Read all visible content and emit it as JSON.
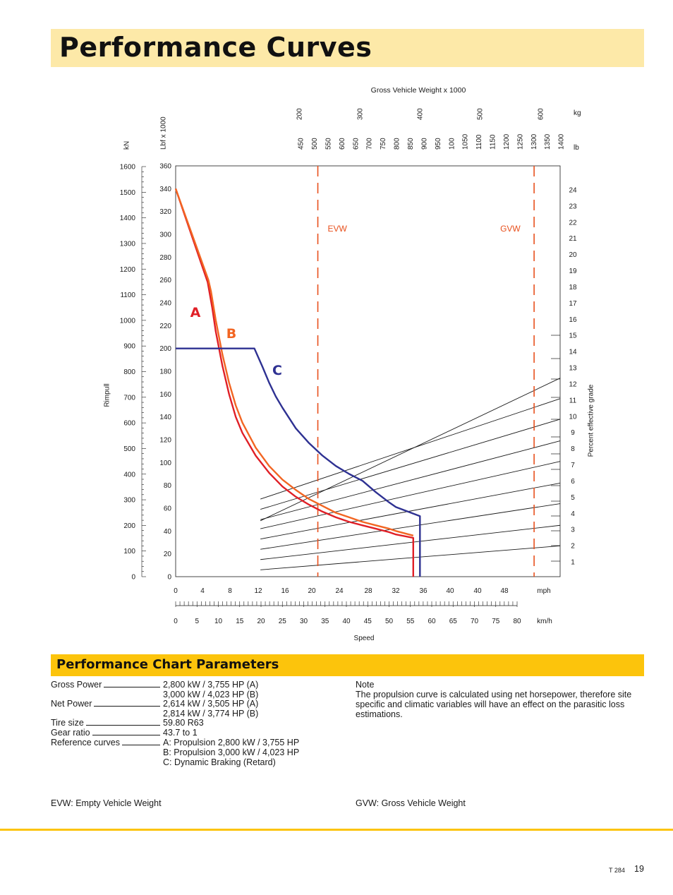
{
  "page_title": "Performance Curves",
  "chart_data": {
    "type": "line",
    "top_axis_title": "Gross Vehicle Weight x 1000",
    "kg_unit": "kg",
    "lb_unit": "lb",
    "kg_ticks": [
      "200",
      "300",
      "400",
      "500",
      "600"
    ],
    "lb_ticks": [
      "450",
      "500",
      "550",
      "600",
      "650",
      "700",
      "750",
      "800",
      "850",
      "900",
      "950",
      "100",
      "1050",
      "1100",
      "1150",
      "1200",
      "1250",
      "1300",
      "1350",
      "1400"
    ],
    "left_axis_kn_unit": "kN",
    "left_axis_lbf_unit": "Lbf x 1000",
    "ylabel": "Rimpull",
    "kn_ticks": [
      "1600",
      "1500",
      "1400",
      "1300",
      "1200",
      "1100",
      "1000",
      "900",
      "800",
      "700",
      "600",
      "500",
      "400",
      "300",
      "200",
      "100",
      "0"
    ],
    "lbf_ticks": [
      "360",
      "340",
      "320",
      "300",
      "280",
      "260",
      "240",
      "220",
      "200",
      "180",
      "160",
      "140",
      "120",
      "100",
      "80",
      "60",
      "40",
      "20",
      "0"
    ],
    "ylim_lbf": [
      0,
      360
    ],
    "right_axis_label": "Percent effective grade",
    "grade_ticks": [
      "24",
      "23",
      "22",
      "21",
      "20",
      "19",
      "18",
      "17",
      "16",
      "15",
      "14",
      "13",
      "12",
      "11",
      "10",
      "9",
      "8",
      "7",
      "6",
      "5",
      "4",
      "3",
      "2",
      "1"
    ],
    "mph_ticks": [
      "0",
      "4",
      "8",
      "12",
      "16",
      "20",
      "24",
      "28",
      "32",
      "36",
      "40",
      "40",
      "48"
    ],
    "mph_unit": "mph",
    "kmh_ticks": [
      "0",
      "5",
      "10",
      "15",
      "20",
      "25",
      "30",
      "35",
      "40",
      "45",
      "50",
      "55",
      "60",
      "65",
      "70",
      "75",
      "80"
    ],
    "kmh_unit": "km/h",
    "xlabel": "Speed",
    "xlim_mph": [
      0,
      57.6
    ],
    "markers": [
      {
        "label": "EVW",
        "x_mph": 21.3,
        "color": "#e8501d"
      },
      {
        "label": "GVW",
        "x_mph": 53.7,
        "color": "#e8501d"
      }
    ],
    "series": [
      {
        "name": "A",
        "color": "#e01f26",
        "points": [
          [
            0,
            340
          ],
          [
            4.8,
            258
          ],
          [
            5.5,
            235
          ],
          [
            6,
            215
          ],
          [
            7,
            185
          ],
          [
            8,
            160
          ],
          [
            9,
            140
          ],
          [
            10,
            126
          ],
          [
            12,
            106
          ],
          [
            14,
            91
          ],
          [
            16,
            79
          ],
          [
            18,
            70
          ],
          [
            20,
            63
          ],
          [
            22,
            57
          ],
          [
            24,
            52
          ],
          [
            26,
            48
          ],
          [
            28,
            45
          ],
          [
            30,
            42
          ],
          [
            32,
            39
          ],
          [
            33,
            37
          ],
          [
            35.6,
            34
          ],
          [
            35.6,
            0
          ]
        ]
      },
      {
        "name": "B",
        "color": "#f26522",
        "points": [
          [
            0,
            340
          ],
          [
            4.9,
            260
          ],
          [
            5.3,
            250
          ],
          [
            6,
            225
          ],
          [
            7,
            195
          ],
          [
            8,
            170
          ],
          [
            9,
            150
          ],
          [
            10,
            135
          ],
          [
            12,
            113
          ],
          [
            14,
            97
          ],
          [
            16,
            85
          ],
          [
            18,
            76
          ],
          [
            20,
            68
          ],
          [
            22,
            62
          ],
          [
            24,
            56
          ],
          [
            26,
            52
          ],
          [
            28,
            48
          ],
          [
            30,
            45
          ],
          [
            32,
            42
          ],
          [
            33,
            40
          ],
          [
            35.6,
            36
          ]
        ]
      },
      {
        "name": "C",
        "color": "#2e3192",
        "points": [
          [
            0,
            200
          ],
          [
            11.8,
            200
          ],
          [
            13,
            184
          ],
          [
            14,
            170
          ],
          [
            15,
            158
          ],
          [
            16,
            148
          ],
          [
            18,
            130
          ],
          [
            20,
            117
          ],
          [
            22,
            106
          ],
          [
            24,
            97
          ],
          [
            26,
            90
          ],
          [
            28,
            84
          ],
          [
            30,
            74
          ],
          [
            32,
            65
          ],
          [
            33,
            61
          ],
          [
            36.6,
            53
          ],
          [
            36.6,
            0
          ]
        ]
      }
    ],
    "grade_lines": [
      {
        "grade": 1,
        "points": [
          [
            12.7,
            6
          ],
          [
            57.6,
            27
          ]
        ]
      },
      {
        "grade": 2,
        "points": [
          [
            12.7,
            15
          ],
          [
            57.6,
            45
          ]
        ]
      },
      {
        "grade": 3,
        "points": [
          [
            12.7,
            24
          ],
          [
            57.6,
            64
          ]
        ]
      },
      {
        "grade": 4,
        "points": [
          [
            12.7,
            33
          ],
          [
            57.6,
            82
          ]
        ]
      },
      {
        "grade": 5,
        "points": [
          [
            12.7,
            42
          ],
          [
            57.6,
            101
          ]
        ]
      },
      {
        "grade": 6,
        "points": [
          [
            12.7,
            50
          ],
          [
            57.6,
            119
          ]
        ]
      },
      {
        "grade": 7,
        "points": [
          [
            12.7,
            59
          ],
          [
            57.6,
            138
          ]
        ]
      },
      {
        "grade": 8,
        "points": [
          [
            12.7,
            68
          ],
          [
            57.6,
            156
          ]
        ]
      },
      {
        "grade": 9,
        "points": [
          [
            12.7,
            49
          ],
          [
            57.6,
            174
          ]
        ]
      }
    ]
  },
  "params_title": "Performance Chart Parameters",
  "params": {
    "gross_power_label": "Gross Power",
    "gross_power_v1": "2,800 kW / 3,755 HP (A)",
    "gross_power_v2": "3,000 kW / 4,023 HP (B)",
    "net_power_label": "Net Power",
    "net_power_v1": "2,614 kW / 3,505 HP (A)",
    "net_power_v2": "2,814 kW / 3,774 HP (B)",
    "tire_size_label": "Tire size",
    "tire_size_value": "59.80 R63",
    "gear_ratio_label": "Gear ratio",
    "gear_ratio_value": "43.7 to 1",
    "reference_label": "Reference curves",
    "reference_v1": "A: Propulsion 2,800 kW / 3,755 HP",
    "reference_v2": "B: Propulsion 3,000 kW / 4,023 HP",
    "reference_v3": "C: Dynamic Braking (Retard)"
  },
  "note_title": "Note",
  "note_text": "The propulsion curve is calculated using net horsepower, therefore site specific and climatic variables will have an effect on the parasitic loss estimations.",
  "evw_legend": "EVW: Empty Vehicle Weight",
  "gvw_legend": "GVW: Gross Vehicle Weight",
  "page_code": "T 284",
  "page_number": "19"
}
